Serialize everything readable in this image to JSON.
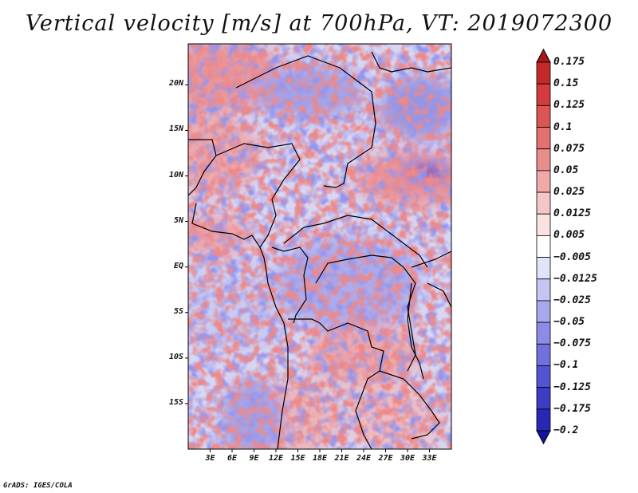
{
  "title": "Vertical velocity [m/s] at 700hPa, VT: 2019072300",
  "footer": "GrADS: IGES/COLA",
  "map": {
    "lon_range": [
      0,
      36
    ],
    "lat_range": [
      -20,
      24.5
    ],
    "lat_labels": [
      {
        "lat": 20,
        "text": "20N"
      },
      {
        "lat": 15,
        "text": "15N"
      },
      {
        "lat": 10,
        "text": "10N"
      },
      {
        "lat": 5,
        "text": "5N"
      },
      {
        "lat": 0,
        "text": "EQ"
      },
      {
        "lat": -5,
        "text": "5S"
      },
      {
        "lat": -10,
        "text": "10S"
      },
      {
        "lat": -15,
        "text": "15S"
      }
    ],
    "lon_labels": [
      {
        "lon": 3,
        "text": "3E"
      },
      {
        "lon": 6,
        "text": "6E"
      },
      {
        "lon": 9,
        "text": "9E"
      },
      {
        "lon": 12,
        "text": "12E"
      },
      {
        "lon": 15,
        "text": "15E"
      },
      {
        "lon": 18,
        "text": "18E"
      },
      {
        "lon": 21,
        "text": "21E"
      },
      {
        "lon": 24,
        "text": "24E"
      },
      {
        "lon": 27,
        "text": "27E"
      },
      {
        "lon": 30,
        "text": "30E"
      },
      {
        "lon": 33,
        "text": "33E"
      }
    ]
  },
  "colorbar": {
    "labels": [
      "0.175",
      "0.15",
      "0.125",
      "0.1",
      "0.075",
      "0.05",
      "0.025",
      "0.0125",
      "0.005",
      "−0.005",
      "−0.0125",
      "−0.025",
      "−0.05",
      "−0.075",
      "−0.1",
      "−0.125",
      "−0.175",
      "−0.2"
    ],
    "colors": [
      "#a81818",
      "#c42828",
      "#d23c3c",
      "#dc5454",
      "#e47070",
      "#ea8c8c",
      "#f0a8a8",
      "#f5c6c6",
      "#fae2e2",
      "#ffffff",
      "#e2e2fa",
      "#c6c6f5",
      "#a8a8ef",
      "#8c8ce8",
      "#7070de",
      "#5454d2",
      "#3c3cc4",
      "#2828b4",
      "#1414a0"
    ]
  }
}
